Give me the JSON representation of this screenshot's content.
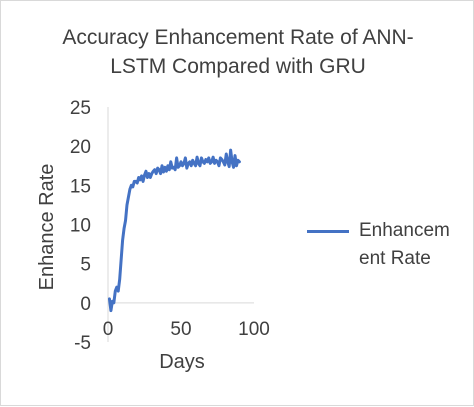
{
  "chart_data": {
    "type": "line",
    "title_line1": "Accuracy Enhancement Rate of ANN-",
    "title_line2": "LSTM Compared with GRU",
    "xlabel": "Days",
    "ylabel": "Enhance Rate",
    "xlim": [
      0,
      100
    ],
    "ylim": [
      -5,
      25
    ],
    "xticks": [
      0,
      50,
      100
    ],
    "yticks": [
      -5,
      0,
      5,
      10,
      15,
      20,
      25
    ],
    "grid": false,
    "legend_position": "right",
    "legend_label_line1": "Enhancem",
    "legend_label_line2": "ent Rate",
    "series": [
      {
        "name": "Enhancement Rate",
        "color": "#4472c4",
        "x": [
          1,
          2,
          3,
          4,
          5,
          6,
          7,
          8,
          9,
          10,
          11,
          12,
          13,
          14,
          15,
          16,
          17,
          18,
          19,
          20,
          21,
          22,
          23,
          24,
          25,
          26,
          27,
          28,
          29,
          30,
          31,
          32,
          33,
          34,
          35,
          36,
          37,
          38,
          39,
          40,
          41,
          42,
          43,
          44,
          45,
          46,
          47,
          48,
          49,
          50,
          51,
          52,
          53,
          54,
          55,
          56,
          57,
          58,
          59,
          60,
          61,
          62,
          63,
          64,
          65,
          66,
          67,
          68,
          69,
          70,
          71,
          72,
          73,
          74,
          75,
          76,
          77,
          78,
          79,
          80,
          81,
          82,
          83,
          84,
          85,
          86,
          87,
          88,
          89,
          90
        ],
        "y": [
          0.5,
          -1.0,
          0.2,
          0.0,
          1.5,
          2.0,
          1.5,
          3.0,
          5.5,
          8.0,
          9.5,
          10.5,
          12.5,
          13.5,
          14.5,
          15.0,
          14.8,
          15.5,
          15.5,
          15.3,
          16.0,
          15.7,
          16.2,
          15.5,
          16.3,
          16.8,
          16.0,
          16.5,
          16.0,
          16.5,
          16.8,
          17.0,
          16.5,
          17.2,
          17.0,
          16.5,
          17.5,
          16.7,
          17.3,
          16.8,
          17.5,
          17.0,
          18.0,
          17.2,
          17.3,
          17.0,
          18.5,
          17.3,
          17.5,
          18.0,
          17.5,
          17.8,
          18.5,
          17.2,
          17.8,
          18.0,
          17.5,
          18.2,
          17.8,
          17.5,
          18.6,
          17.8,
          17.5,
          18.5,
          18.0,
          17.8,
          18.3,
          18.0,
          18.5,
          17.8,
          18.0,
          18.6,
          17.8,
          18.2,
          18.0,
          17.5,
          18.5,
          18.3,
          18.0,
          17.6,
          19.0,
          18.0,
          17.4,
          19.5,
          18.0,
          17.3,
          18.8,
          17.5,
          18.2,
          18.0
        ]
      }
    ]
  }
}
